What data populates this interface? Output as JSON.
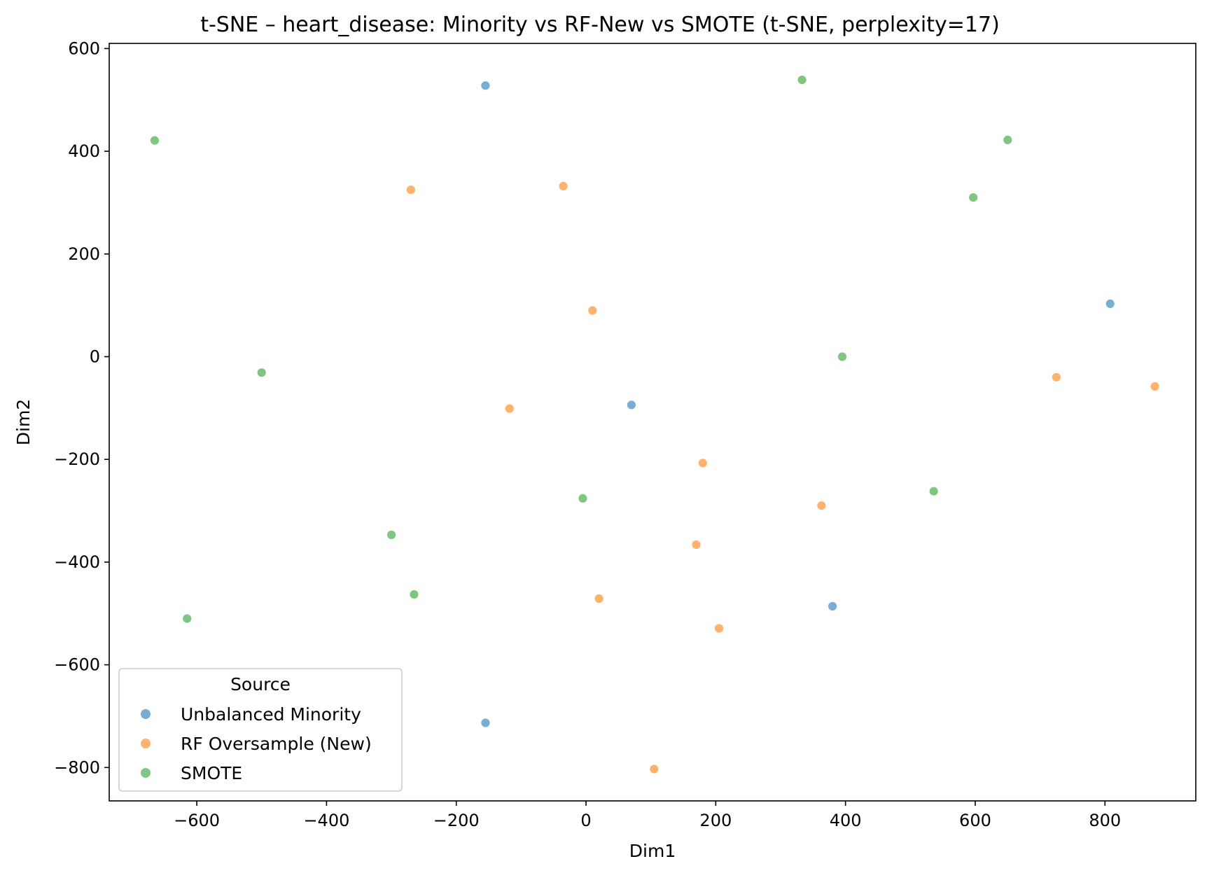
{
  "chart_data": {
    "type": "scatter",
    "title": "t-SNE – heart_disease: Minority vs RF-New vs SMOTE (t-SNE, perplexity=17)",
    "xlabel": "Dim1",
    "ylabel": "Dim2",
    "xlim": [
      -735,
      940
    ],
    "ylim": [
      -865,
      610
    ],
    "xticks": [
      -600,
      -400,
      -200,
      0,
      200,
      400,
      600,
      800
    ],
    "yticks": [
      600,
      400,
      200,
      0,
      -200,
      -400,
      -600,
      -800
    ],
    "grid": false,
    "legend": {
      "title": "Source",
      "position": "lower-left",
      "entries": [
        "Unbalanced Minority",
        "RF Oversample (New)",
        "SMOTE"
      ]
    },
    "series": [
      {
        "name": "Unbalanced Minority",
        "color": "#1f77b4",
        "alpha": 0.6,
        "points": [
          [
            -155,
            528
          ],
          [
            808,
            103
          ],
          [
            70,
            -94
          ],
          [
            380,
            -486
          ],
          [
            -155,
            -713
          ]
        ]
      },
      {
        "name": "RF Oversample (New)",
        "color": "#ff7f0e",
        "alpha": 0.6,
        "points": [
          [
            -270,
            325
          ],
          [
            -35,
            332
          ],
          [
            10,
            90
          ],
          [
            -118,
            -101
          ],
          [
            180,
            -207
          ],
          [
            725,
            -40
          ],
          [
            877,
            -58
          ],
          [
            363,
            -290
          ],
          [
            170,
            -366
          ],
          [
            20,
            -471
          ],
          [
            205,
            -529
          ],
          [
            105,
            -803
          ]
        ]
      },
      {
        "name": "SMOTE",
        "color": "#2ca02c",
        "alpha": 0.6,
        "points": [
          [
            -665,
            421
          ],
          [
            333,
            539
          ],
          [
            650,
            422
          ],
          [
            597,
            310
          ],
          [
            -500,
            -31
          ],
          [
            395,
            0
          ],
          [
            -5,
            -276
          ],
          [
            536,
            -262
          ],
          [
            -300,
            -347
          ],
          [
            -265,
            -463
          ],
          [
            -615,
            -510
          ]
        ]
      }
    ]
  }
}
